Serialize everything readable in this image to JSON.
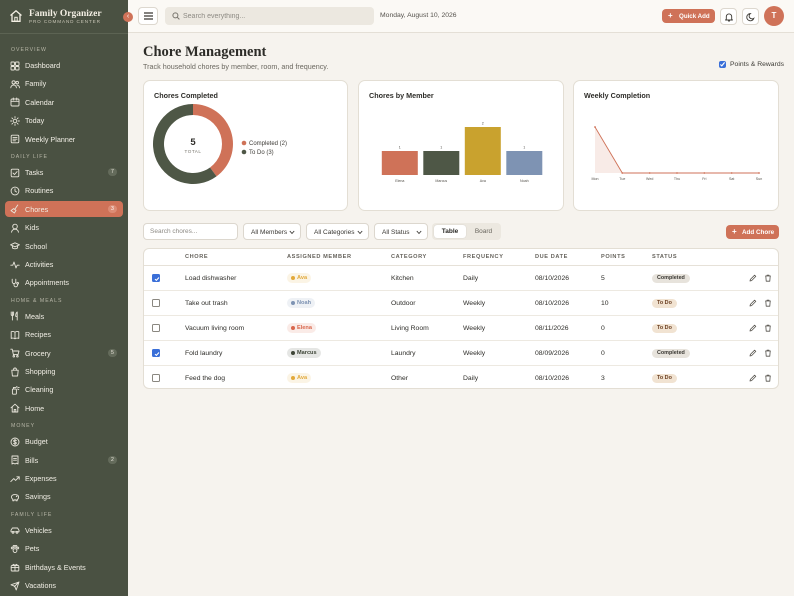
{
  "app": {
    "title": "Family Organizer",
    "subtitle": "PRO COMMAND CENTER"
  },
  "sidebar": {
    "collapse_icon": "chevron-left-icon",
    "sections": [
      {
        "label": "OVERVIEW",
        "items": [
          {
            "label": "Dashboard",
            "icon": "grid-icon"
          },
          {
            "label": "Family",
            "icon": "users-icon"
          },
          {
            "label": "Calendar",
            "icon": "calendar-icon"
          },
          {
            "label": "Today",
            "icon": "sun-icon"
          },
          {
            "label": "Weekly Planner",
            "icon": "planner-icon"
          }
        ]
      },
      {
        "label": "DAILY LIFE",
        "items": [
          {
            "label": "Tasks",
            "icon": "checklist-icon",
            "badge": "7"
          },
          {
            "label": "Routines",
            "icon": "clock-icon"
          },
          {
            "label": "Chores",
            "icon": "broom-icon",
            "badge": "3",
            "active": true
          },
          {
            "label": "Kids",
            "icon": "baby-icon"
          },
          {
            "label": "School",
            "icon": "graduation-cap-icon"
          },
          {
            "label": "Activities",
            "icon": "activity-icon"
          },
          {
            "label": "Appointments",
            "icon": "stethoscope-icon"
          }
        ]
      },
      {
        "label": "HOME & MEALS",
        "items": [
          {
            "label": "Meals",
            "icon": "utensils-icon"
          },
          {
            "label": "Recipes",
            "icon": "book-icon"
          },
          {
            "label": "Grocery",
            "icon": "cart-icon",
            "badge": "5"
          },
          {
            "label": "Shopping",
            "icon": "bag-icon"
          },
          {
            "label": "Cleaning",
            "icon": "spray-icon"
          },
          {
            "label": "Home",
            "icon": "house-icon"
          }
        ]
      },
      {
        "label": "MONEY",
        "items": [
          {
            "label": "Budget",
            "icon": "dollar-icon"
          },
          {
            "label": "Bills",
            "icon": "receipt-icon",
            "badge": "2"
          },
          {
            "label": "Expenses",
            "icon": "trending-icon"
          },
          {
            "label": "Savings",
            "icon": "piggy-bank-icon"
          }
        ]
      },
      {
        "label": "FAMILY LIFE",
        "items": [
          {
            "label": "Vehicles",
            "icon": "car-icon"
          },
          {
            "label": "Pets",
            "icon": "paw-icon"
          },
          {
            "label": "Birthdays & Events",
            "icon": "gift-icon"
          },
          {
            "label": "Vacations",
            "icon": "plane-icon"
          }
        ]
      }
    ]
  },
  "topbar": {
    "search_placeholder": "Search everything...",
    "date": "Monday, August 10, 2026",
    "quick_add_label": "Quick Add",
    "avatar_initial": "T"
  },
  "page": {
    "title": "Chore Management",
    "subtitle": "Track household chores by member, room, and frequency.",
    "points_toggle_label": "Points & Rewards",
    "points_toggle_checked": true
  },
  "charts": {
    "completed_title": "Chores Completed",
    "center_value": "5",
    "center_label": "TOTAL",
    "by_member_title": "Chores by Member",
    "weekly_title": "Weekly Completion"
  },
  "chart_data": [
    {
      "type": "pie",
      "title": "Chores Completed",
      "labels": [
        "Completed (2)",
        "To Do (3)"
      ],
      "values": [
        2,
        3
      ],
      "colors": [
        "#cf7258",
        "#4e5746"
      ],
      "center_text": "5",
      "center_subtext": "TOTAL",
      "legend": "right"
    },
    {
      "type": "bar",
      "title": "Chores by Member",
      "categories": [
        "Elena",
        "Marcus",
        "Ava",
        "Noah"
      ],
      "values": [
        1,
        1,
        2,
        1
      ],
      "colors": [
        "#cf7258",
        "#4e5746",
        "#c9a22e",
        "#7e93b3"
      ],
      "ylim": [
        0,
        2
      ]
    },
    {
      "type": "area",
      "title": "Weekly Completion",
      "categories": [
        "Mon",
        "Tue",
        "Wed",
        "Thu",
        "Fri",
        "Sat",
        "Sun"
      ],
      "values": [
        2,
        0,
        0,
        0,
        0,
        0,
        0
      ],
      "color": "#cf7258",
      "ylim": [
        0,
        2
      ]
    }
  ],
  "filters": {
    "search_placeholder": "Search chores...",
    "members": "All Members",
    "categories": "All Categories",
    "status": "All Status",
    "view_table": "Table",
    "view_board": "Board",
    "add_label": "Add Chore"
  },
  "table": {
    "headers": [
      "CHORE",
      "ASSIGNED MEMBER",
      "CATEGORY",
      "FREQUENCY",
      "DUE DATE",
      "POINTS",
      "STATUS"
    ],
    "rows": [
      {
        "checked": true,
        "chore": "Load dishwasher",
        "member": "Ava",
        "member_color": "#e2a93b",
        "category": "Kitchen",
        "frequency": "Daily",
        "due": "08/10/2026",
        "points": "5",
        "status": "Completed"
      },
      {
        "checked": false,
        "chore": "Take out trash",
        "member": "Noah",
        "member_color": "#7e93b3",
        "category": "Outdoor",
        "frequency": "Weekly",
        "due": "08/10/2026",
        "points": "10",
        "status": "To Do"
      },
      {
        "checked": false,
        "chore": "Vacuum living room",
        "member": "Elena",
        "member_color": "#d9674d",
        "category": "Living Room",
        "frequency": "Weekly",
        "due": "08/11/2026",
        "points": "0",
        "status": "To Do"
      },
      {
        "checked": true,
        "chore": "Fold laundry",
        "member": "Marcus",
        "member_color": "#3e4537",
        "category": "Laundry",
        "frequency": "Weekly",
        "due": "08/09/2026",
        "points": "0",
        "status": "Completed"
      },
      {
        "checked": false,
        "chore": "Feed the dog",
        "member": "Ava",
        "member_color": "#e2a93b",
        "category": "Other",
        "frequency": "Daily",
        "due": "08/10/2026",
        "points": "3",
        "status": "To Do"
      }
    ]
  }
}
